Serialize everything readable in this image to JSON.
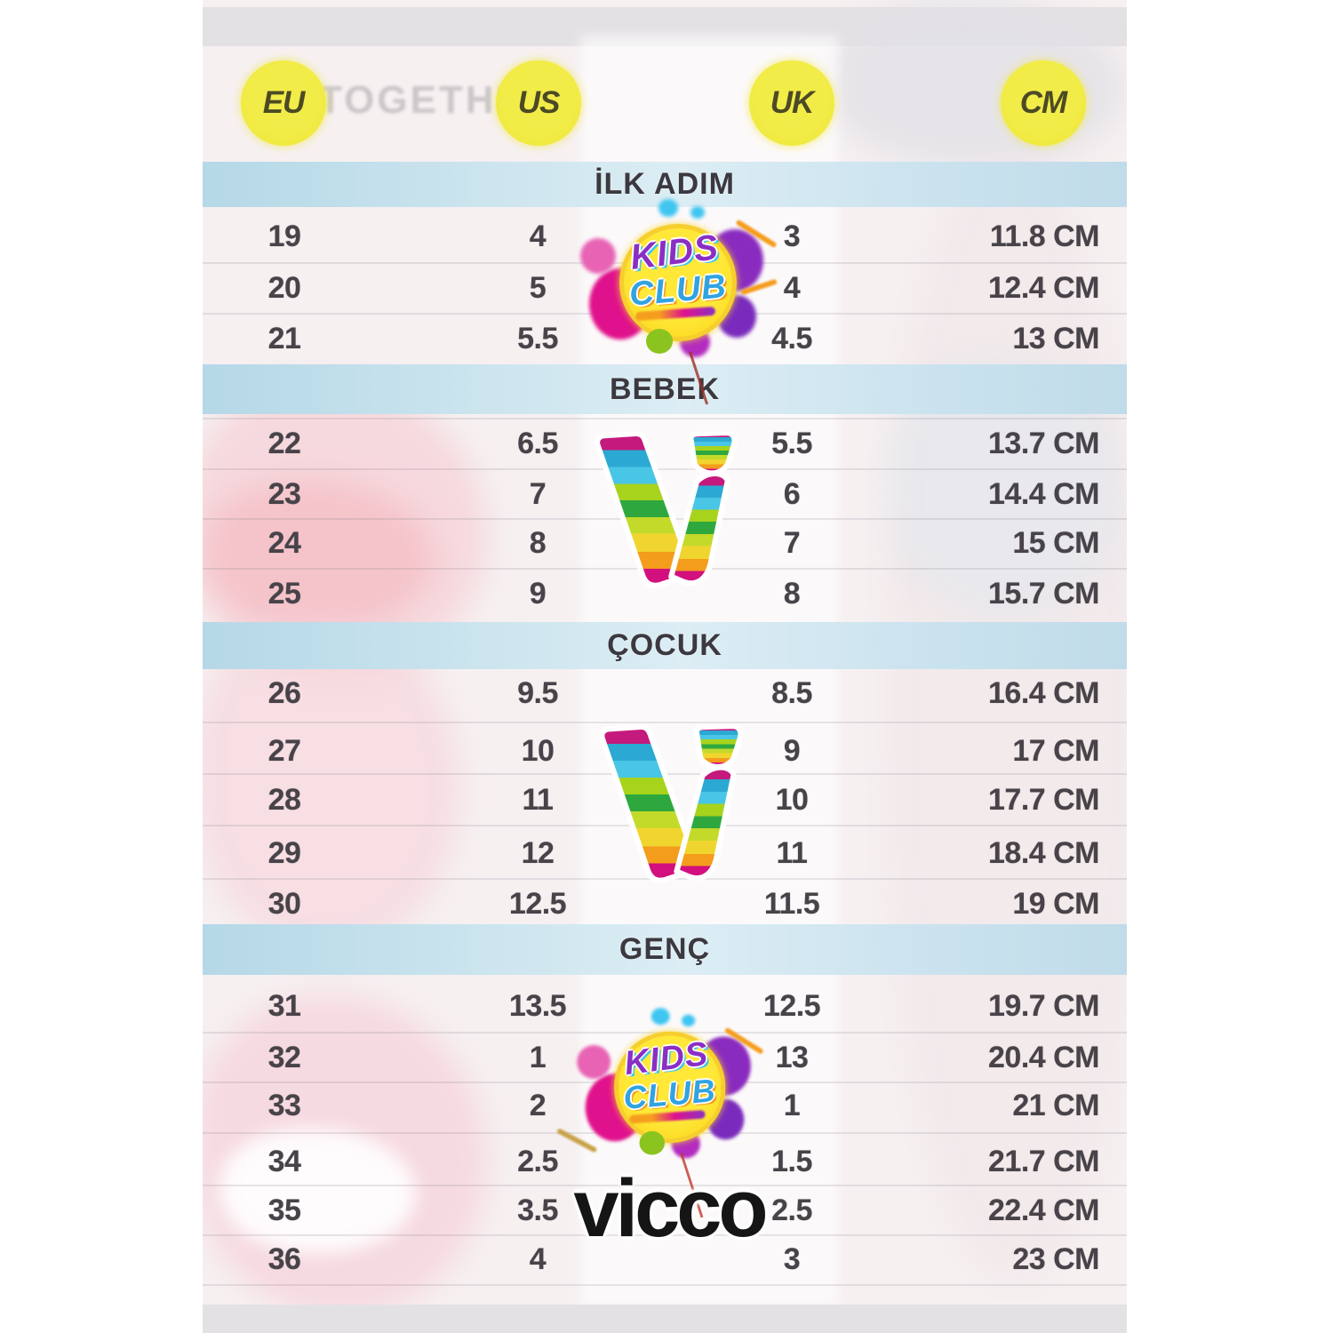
{
  "header": {
    "columns": [
      "EU",
      "US",
      "UK",
      "CM"
    ]
  },
  "sections": [
    {
      "title": "İLK ADIM",
      "rows": [
        [
          "19",
          "4",
          "3",
          "11.8 CM"
        ],
        [
          "20",
          "5",
          "4",
          "12.4 CM"
        ],
        [
          "21",
          "5.5",
          "4.5",
          "13 CM"
        ]
      ]
    },
    {
      "title": "BEBEK",
      "rows": [
        [
          "22",
          "6.5",
          "5.5",
          "13.7 CM"
        ],
        [
          "23",
          "7",
          "6",
          "14.4 CM"
        ],
        [
          "24",
          "8",
          "7",
          "15 CM"
        ],
        [
          "25",
          "9",
          "8",
          "15.7 CM"
        ]
      ]
    },
    {
      "title": "ÇOCUK",
      "rows": [
        [
          "26",
          "9.5",
          "8.5",
          "16.4 CM"
        ],
        [
          "27",
          "10",
          "9",
          "17 CM"
        ],
        [
          "28",
          "11",
          "10",
          "17.7 CM"
        ],
        [
          "29",
          "12",
          "11",
          "18.4 CM"
        ],
        [
          "30",
          "12.5",
          "11.5",
          "19 CM"
        ]
      ]
    },
    {
      "title": "GENÇ",
      "rows": [
        [
          "31",
          "13.5",
          "12.5",
          "19.7 CM"
        ],
        [
          "32",
          "1",
          "13",
          "20.4 CM"
        ],
        [
          "33",
          "2",
          "1",
          "21 CM"
        ],
        [
          "34",
          "2.5",
          "1.5",
          "21.7 CM"
        ],
        [
          "35",
          "3.5",
          "2.5",
          "22.4 CM"
        ],
        [
          "36",
          "4",
          "3",
          "23 CM"
        ]
      ]
    }
  ],
  "logos": {
    "kids_club": {
      "line1": "KIDS",
      "line2": "CLUB"
    },
    "vicco_wordmark": "vicco"
  },
  "background_text": "TOGETHER",
  "colors": {
    "circle_yellow": "#f0e93f",
    "band_blue": "#c3dfec",
    "text_dark": "#474349",
    "vicco_black": "#151515"
  }
}
